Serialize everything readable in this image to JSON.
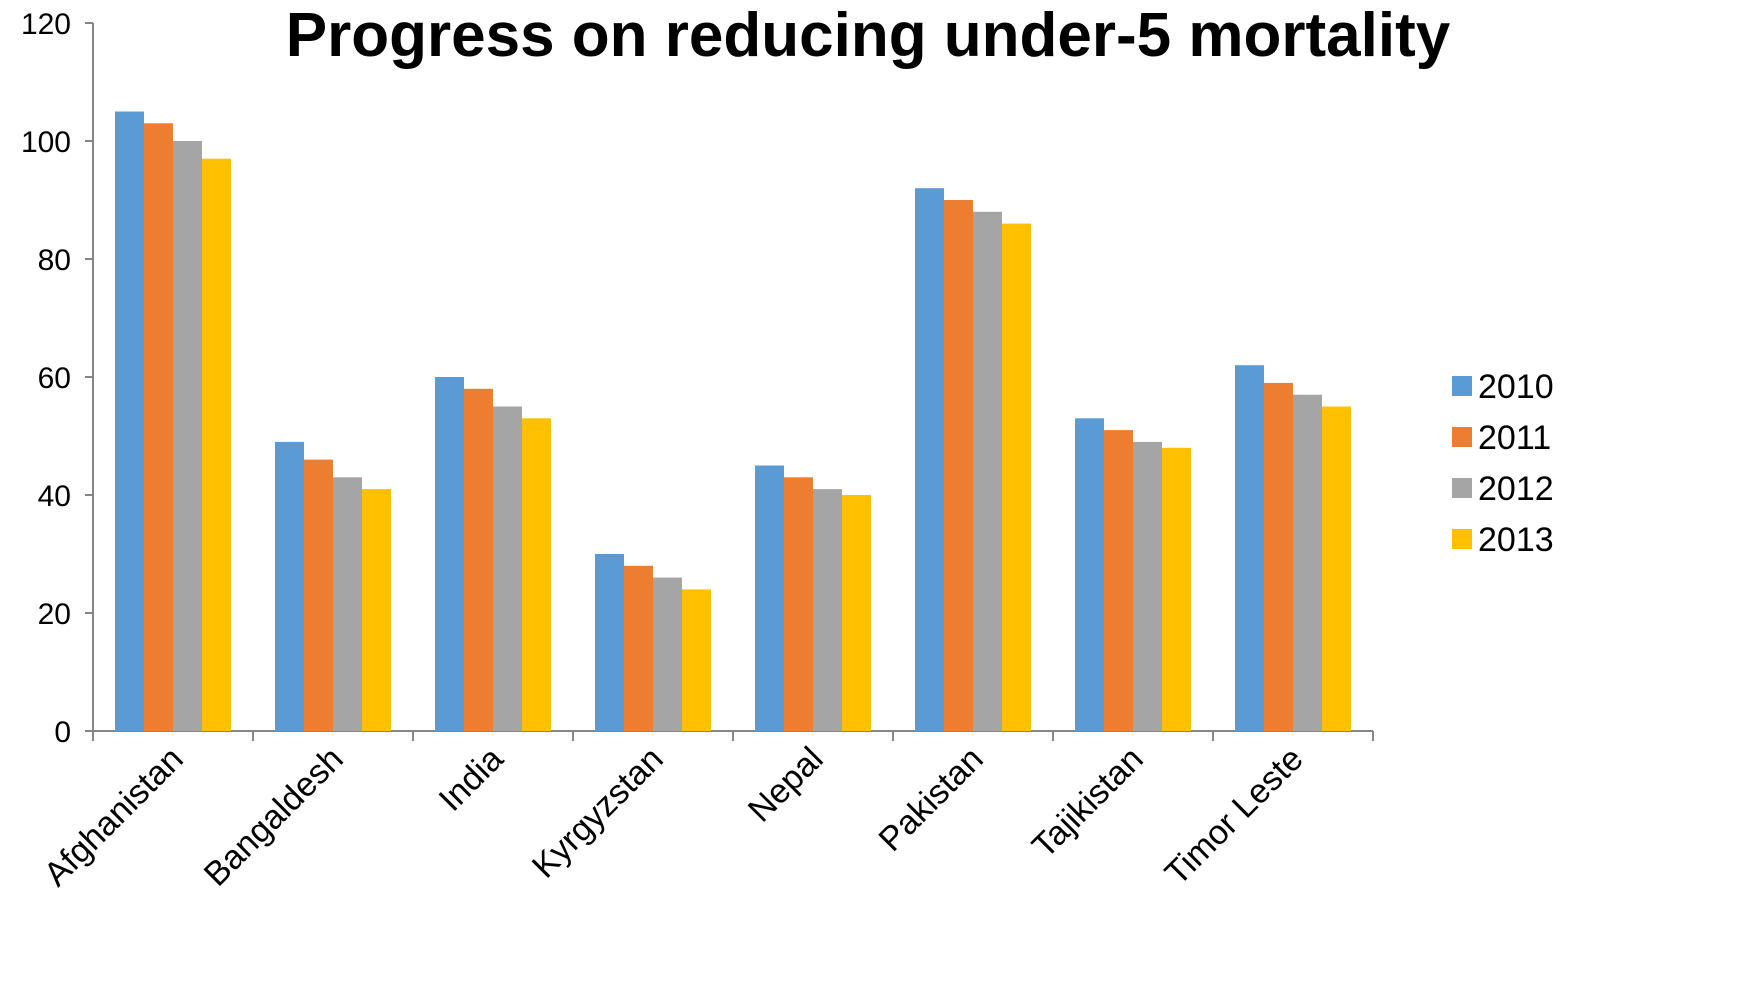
{
  "chart_data": {
    "type": "bar",
    "title": "Progress on reducing under-5 mortality",
    "xlabel": "",
    "ylabel": "",
    "ylim": [
      0,
      120
    ],
    "yticks": [
      0,
      20,
      40,
      60,
      80,
      100,
      120
    ],
    "categories": [
      "Afghanistan",
      "Bangaldesh",
      "India",
      "Kyrgyzstan",
      "Nepal",
      "Pakistan",
      "Tajikistan",
      "Timor Leste"
    ],
    "series": [
      {
        "name": "2010",
        "color": "#5B9BD5",
        "values": [
          105,
          49,
          60,
          30,
          45,
          92,
          53,
          62
        ]
      },
      {
        "name": "2011",
        "color": "#ED7D31",
        "values": [
          103,
          46,
          58,
          28,
          43,
          90,
          51,
          59
        ]
      },
      {
        "name": "2012",
        "color": "#A5A5A5",
        "values": [
          100,
          43,
          55,
          26,
          41,
          88,
          49,
          57
        ]
      },
      {
        "name": "2013",
        "color": "#FFC000",
        "values": [
          97,
          41,
          53,
          24,
          40,
          86,
          48,
          55
        ]
      }
    ],
    "grid": false,
    "legend_position": "right"
  }
}
